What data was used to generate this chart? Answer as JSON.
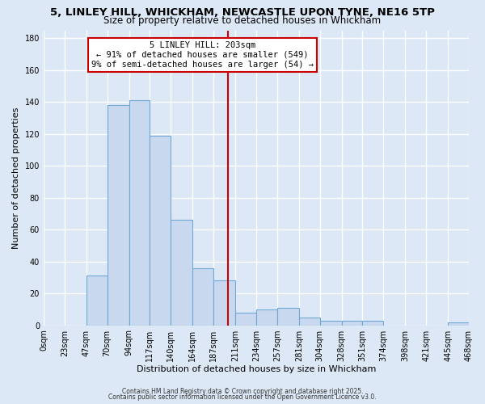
{
  "title": "5, LINLEY HILL, WHICKHAM, NEWCASTLE UPON TYNE, NE16 5TP",
  "subtitle": "Size of property relative to detached houses in Whickham",
  "xlabel": "Distribution of detached houses by size in Whickham",
  "ylabel": "Number of detached properties",
  "bar_edges": [
    0,
    23,
    47,
    70,
    94,
    117,
    140,
    164,
    187,
    211,
    234,
    257,
    281,
    304,
    328,
    351,
    374,
    398,
    421,
    445,
    468
  ],
  "bar_heights": [
    0,
    0,
    31,
    138,
    141,
    119,
    66,
    36,
    28,
    8,
    10,
    11,
    5,
    3,
    3,
    3,
    0,
    0,
    0,
    2
  ],
  "bar_color": "#c8d9ef",
  "bar_edgecolor": "#6fa8d6",
  "vline_x": 203,
  "vline_color": "#cc0000",
  "annotation_title": "5 LINLEY HILL: 203sqm",
  "annotation_line1": "← 91% of detached houses are smaller (549)",
  "annotation_line2": "9% of semi-detached houses are larger (54) →",
  "annotation_box_color": "#ffffff",
  "annotation_box_edgecolor": "#cc0000",
  "ylim": [
    0,
    185
  ],
  "yticks": [
    0,
    20,
    40,
    60,
    80,
    100,
    120,
    140,
    160,
    180
  ],
  "tick_labels": [
    "0sqm",
    "23sqm",
    "47sqm",
    "70sqm",
    "94sqm",
    "117sqm",
    "140sqm",
    "164sqm",
    "187sqm",
    "211sqm",
    "234sqm",
    "257sqm",
    "281sqm",
    "304sqm",
    "328sqm",
    "351sqm",
    "374sqm",
    "398sqm",
    "421sqm",
    "445sqm",
    "468sqm"
  ],
  "footnote1": "Contains HM Land Registry data © Crown copyright and database right 2025.",
  "footnote2": "Contains public sector information licensed under the Open Government Licence v3.0.",
  "bg_color": "#dce8f5",
  "plot_bg_color": "#dce8f5",
  "grid_color": "#ffffff",
  "title_fontsize": 9.5,
  "subtitle_fontsize": 8.5,
  "xlabel_fontsize": 8,
  "ylabel_fontsize": 8,
  "tick_fontsize": 7,
  "annot_fontsize": 7.5
}
